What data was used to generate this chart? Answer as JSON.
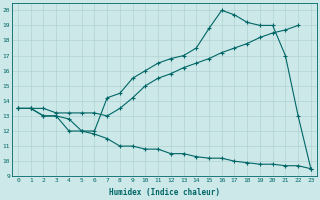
{
  "xlabel": "Humidex (Indice chaleur)",
  "bg_color": "#cce8e8",
  "line_color": "#006666",
  "grid_color": "#aacccc",
  "xlim": [
    -0.5,
    23.5
  ],
  "ylim": [
    9,
    20.5
  ],
  "xticks": [
    0,
    1,
    2,
    3,
    4,
    5,
    6,
    7,
    8,
    9,
    10,
    11,
    12,
    13,
    14,
    15,
    16,
    17,
    18,
    19,
    20,
    21,
    22,
    23
  ],
  "yticks": [
    9,
    10,
    11,
    12,
    13,
    14,
    15,
    16,
    17,
    18,
    19,
    20
  ],
  "line1_x": [
    0,
    1,
    2,
    3,
    4,
    5,
    6,
    7,
    8,
    9,
    10,
    11,
    12,
    13,
    14,
    15,
    16,
    17,
    18,
    19,
    20,
    21,
    22,
    23
  ],
  "line1_y": [
    13.5,
    13.5,
    13.0,
    13.0,
    12.8,
    12.0,
    12.0,
    14.2,
    14.5,
    15.5,
    16.0,
    16.5,
    16.8,
    17.0,
    17.5,
    18.8,
    20.0,
    19.7,
    19.2,
    19.0,
    19.0,
    17.0,
    13.0,
    9.5
  ],
  "line2_x": [
    0,
    1,
    2,
    3,
    4,
    5,
    6,
    7,
    8,
    9,
    10,
    11,
    12,
    13,
    14,
    15,
    16,
    17,
    18,
    19,
    20,
    21,
    22
  ],
  "line2_y": [
    13.5,
    13.5,
    13.5,
    13.2,
    13.2,
    13.2,
    13.2,
    13.0,
    13.5,
    14.2,
    15.0,
    15.5,
    15.8,
    16.2,
    16.5,
    16.8,
    17.2,
    17.5,
    17.8,
    18.2,
    18.5,
    18.7,
    19.0
  ],
  "line3_x": [
    0,
    1,
    2,
    3,
    4,
    5,
    6,
    7,
    8,
    9,
    10,
    11,
    12,
    13,
    14,
    15,
    16,
    17,
    18,
    19,
    20,
    21,
    22,
    23
  ],
  "line3_y": [
    13.5,
    13.5,
    13.0,
    13.0,
    12.0,
    12.0,
    11.8,
    11.5,
    11.0,
    11.0,
    10.8,
    10.8,
    10.5,
    10.5,
    10.3,
    10.2,
    10.2,
    10.0,
    9.9,
    9.8,
    9.8,
    9.7,
    9.7,
    9.5
  ]
}
